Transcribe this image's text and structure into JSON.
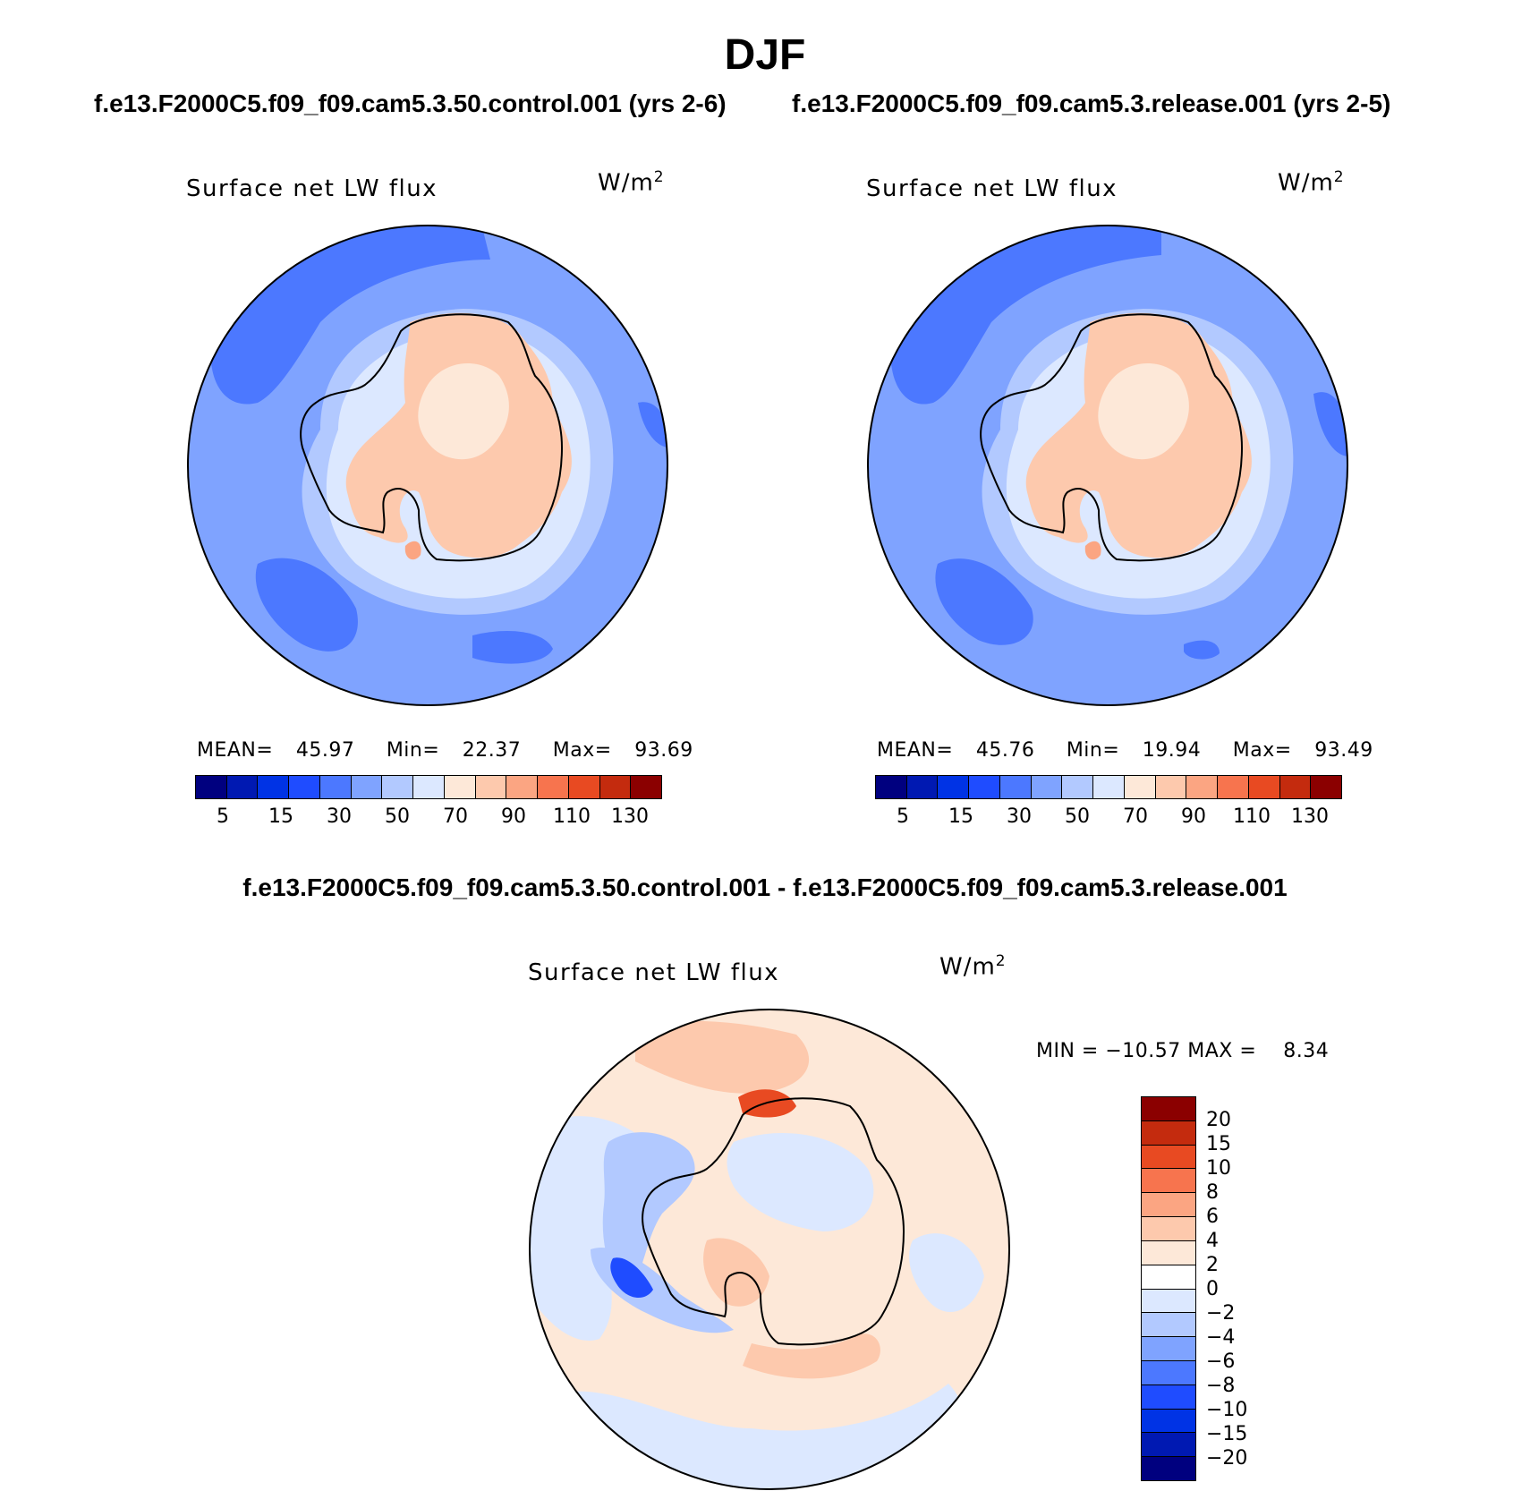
{
  "figure": {
    "season": "DJF",
    "case_left": "f.e13.F2000C5.f09_f09.cam5.3.50.control.001 (yrs 2-6)",
    "case_right": "f.e13.F2000C5.f09_f09.cam5.3.release.001 (yrs 2-5)",
    "case_diff": "f.e13.F2000C5.f09_f09.cam5.3.50.control.001 - f.e13.F2000C5.f09_f09.cam5.3.release.001"
  },
  "panels": [
    {
      "title": "Surface net LW flux",
      "units_base": "W/m",
      "units_exp": "2",
      "mean_label": "MEAN=",
      "mean": "45.97",
      "min_label": "Min=",
      "min": "22.37",
      "max_label": "Max=",
      "max": "93.69"
    },
    {
      "title": "Surface net LW flux",
      "units_base": "W/m",
      "units_exp": "2",
      "mean_label": "MEAN=",
      "mean": "45.76",
      "min_label": "Min=",
      "min": "19.94",
      "max_label": "Max=",
      "max": "93.49"
    }
  ],
  "diff_panel": {
    "title": "Surface net LW flux",
    "units_base": "W/m",
    "units_exp": "2",
    "minmax_text": "MIN = −10.57 MAX =    8.34"
  },
  "colorbar_abs": {
    "labels": [
      "5",
      "15",
      "30",
      "50",
      "70",
      "90",
      "110",
      "130"
    ],
    "colors": [
      "#00007f",
      "#0019b2",
      "#0033e5",
      "#1f4cff",
      "#4c78ff",
      "#7fa3ff",
      "#b2c9ff",
      "#dce8ff",
      "#fde8d8",
      "#fdc9ad",
      "#fba582",
      "#f7744e",
      "#e84a22",
      "#c42b0e",
      "#8b0000"
    ]
  },
  "colorbar_diff": {
    "labels": [
      "20",
      "15",
      "10",
      "8",
      "6",
      "4",
      "2",
      "0",
      "−2",
      "−4",
      "−6",
      "−8",
      "−10",
      "−15",
      "−20"
    ],
    "colors": [
      "#8b0000",
      "#c42b0e",
      "#e84a22",
      "#f7744e",
      "#fba582",
      "#fdc9ad",
      "#fde8d8",
      "#ffffff",
      "#dce8ff",
      "#b2c9ff",
      "#7fa3ff",
      "#4c78ff",
      "#1f4cff",
      "#0033e5",
      "#0019b2",
      "#00007f"
    ]
  },
  "map_colors": {
    "ocean_deep": "#4c78ff",
    "ocean_mid": "#7fa3ff",
    "ocean_light": "#b2c9ff",
    "shelf": "#dce8ff",
    "land": "#fdc9ad",
    "land_light": "#fde8d8",
    "land_warm": "#fba582",
    "diff_neutral": "#fde8d8",
    "diff_pos": "#fdc9ad",
    "diff_pos_strong": "#e84a22",
    "diff_neg_light": "#dce8ff",
    "diff_neg": "#b2c9ff",
    "diff_neg_strong": "#1f4cff"
  }
}
